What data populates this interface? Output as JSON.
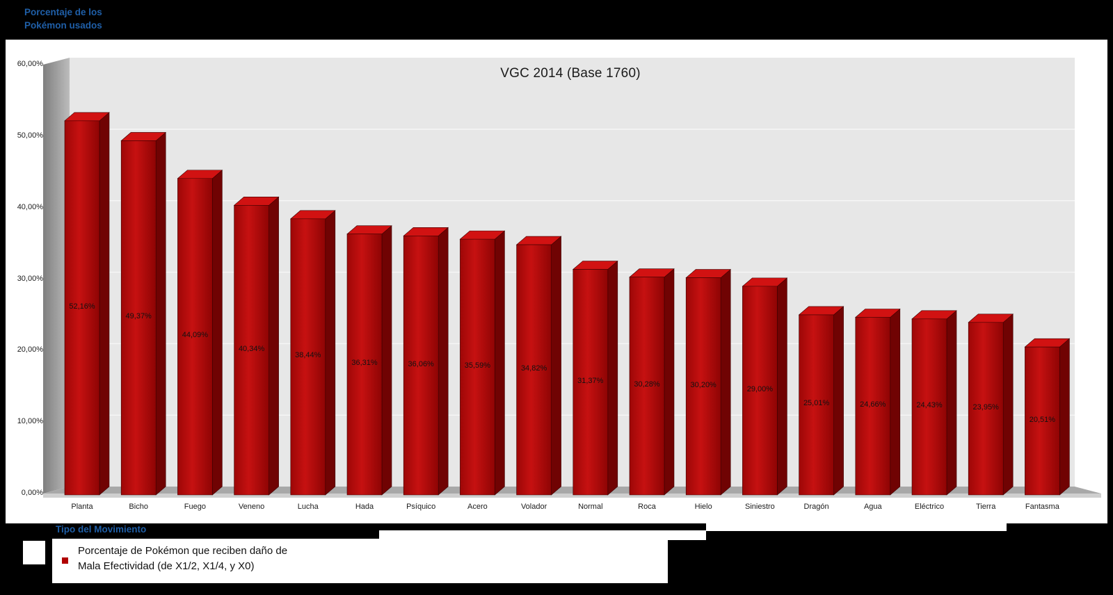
{
  "chart_data": {
    "type": "bar",
    "style": "3d-column",
    "title": "VGC 2014 (Base 1760)",
    "categories": [
      "Planta",
      "Bicho",
      "Fuego",
      "Veneno",
      "Lucha",
      "Hada",
      "Psíquico",
      "Acero",
      "Volador",
      "Normal",
      "Roca",
      "Hielo",
      "Siniestro",
      "Dragón",
      "Agua",
      "Eléctrico",
      "Tierra",
      "Fantasma"
    ],
    "values": [
      52.16,
      49.37,
      44.09,
      40.34,
      38.44,
      36.31,
      36.06,
      35.59,
      34.82,
      31.37,
      30.28,
      30.2,
      29.0,
      25.01,
      24.66,
      24.43,
      23.95,
      20.51
    ],
    "value_labels": [
      "52,16%",
      "49,37%",
      "44,09%",
      "40,34%",
      "38,44%",
      "36,31%",
      "36,06%",
      "35,59%",
      "34,82%",
      "31,37%",
      "30,28%",
      "30,20%",
      "29,00%",
      "25,01%",
      "24,66%",
      "24,43%",
      "23,95%",
      "20,51%"
    ],
    "ylabel": "Porcentaje de los Pokémon usados",
    "xlabel": "Tipo del Movimiento",
    "ylim": [
      0,
      60
    ],
    "ytick_labels": [
      "0,00%",
      "10,00%",
      "20,00%",
      "30,00%",
      "40,00%",
      "50,00%",
      "60,00%"
    ],
    "grid": true,
    "legend_position": "bottom-left",
    "legend": [
      "Porcentaje de Pokémon que reciben daño de Mala Efectividad (de X1/2, X1/4, y X0)"
    ],
    "colors": {
      "bar_front": "#b30808",
      "bar_side": "#700303",
      "bar_top": "#d11212",
      "wall": "#e7e7e7",
      "side_wall": "#9a9a9a",
      "floor": "#a8a8a8",
      "page_background": "#000000",
      "plot_background": "#ffffff",
      "axis_title_blue": "#1f5fa8"
    }
  },
  "header": {
    "y_axis_title_line1": "Porcentaje de los",
    "y_axis_title_line2": "Pokémon usados"
  },
  "footer": {
    "x_axis_title": "Tipo del Movimiento",
    "legend_line1": "Porcentaje de Pokémon que reciben daño de",
    "legend_line2": "Mala Efectividad (de X1/2, X1/4, y X0)"
  }
}
